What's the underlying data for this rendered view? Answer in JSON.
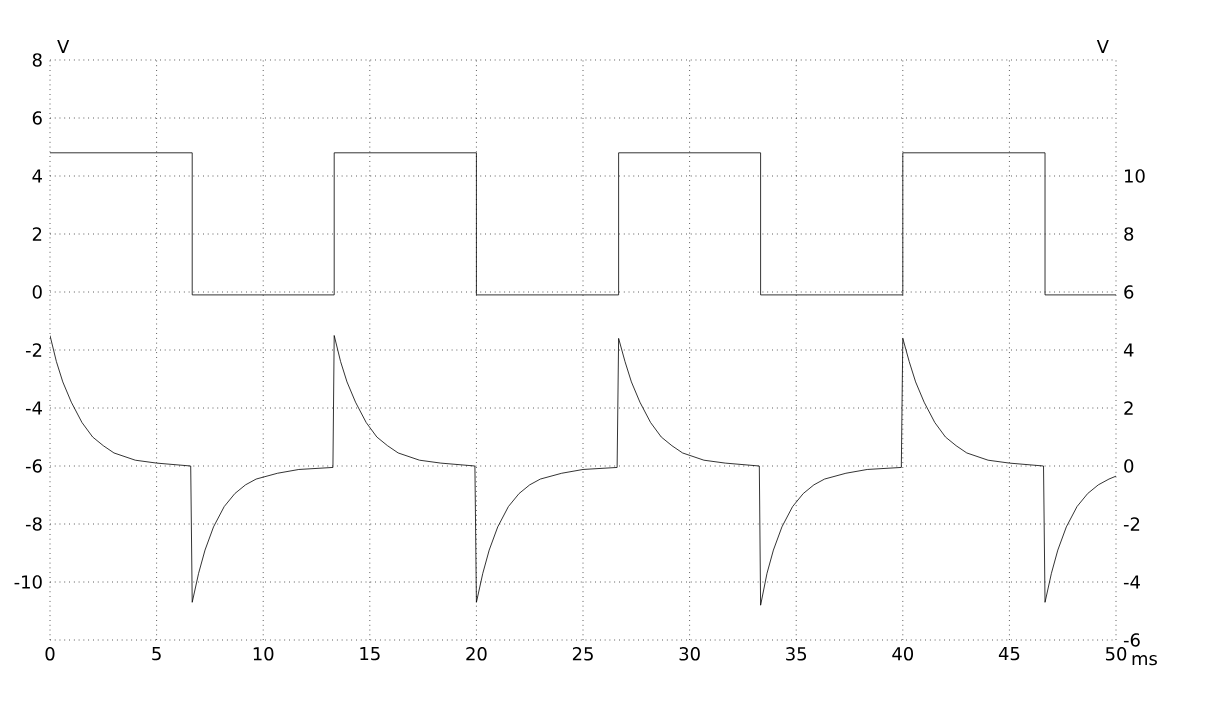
{
  "chart_data": {
    "type": "line",
    "xlabel": "ms",
    "ylabel": "V",
    "y2label": "V",
    "xlim": [
      0,
      50
    ],
    "xticks": [
      0,
      5,
      10,
      15,
      20,
      25,
      30,
      35,
      40,
      45,
      50
    ],
    "ylim": [
      -12,
      8
    ],
    "yticks": [
      {
        "value": -12,
        "label": null
      },
      -10,
      -8,
      -6,
      -4,
      -2,
      0,
      2,
      4,
      6,
      8
    ],
    "y2lim": [
      -6,
      14
    ],
    "y2ticks": [
      -6,
      -4,
      -2,
      0,
      2,
      4,
      6,
      8,
      10
    ],
    "grid": true,
    "marker": "none",
    "line_style": "solid",
    "series": [
      {
        "color": "#000000",
        "x": [
          0,
          6.67,
          6.67,
          13.33,
          13.33,
          20,
          20,
          26.67,
          26.67,
          33.33,
          33.33,
          40,
          40,
          46.67,
          46.67,
          50
        ],
        "values": [
          4.8,
          4.8,
          -0.1,
          -0.1,
          4.8,
          4.8,
          -0.1,
          -0.1,
          4.8,
          4.8,
          -0.1,
          -0.1,
          4.8,
          4.8,
          -0.1,
          -0.1
        ]
      },
      {
        "color": "#000000",
        "axis": "y2",
        "x": [
          0,
          0.3,
          0.6,
          1,
          1.5,
          2,
          2.5,
          3,
          4,
          5,
          6.6,
          6.67,
          6.97,
          7.27,
          7.67,
          8.17,
          8.67,
          9.17,
          9.67,
          10.67,
          11.67,
          13.27,
          13.33,
          13.63,
          13.93,
          14.33,
          14.83,
          15.33,
          15.83,
          16.33,
          17.33,
          18.33,
          19.93,
          20,
          20.3,
          20.6,
          21,
          21.5,
          22,
          22.5,
          23,
          24,
          25,
          26.6,
          26.67,
          26.97,
          27.27,
          27.67,
          28.17,
          28.67,
          29.17,
          29.67,
          30.67,
          31.67,
          33.27,
          33.33,
          33.63,
          33.93,
          34.33,
          34.83,
          35.33,
          35.83,
          36.33,
          37.33,
          38.33,
          39.93,
          40,
          40.3,
          40.6,
          41,
          41.5,
          42,
          42.5,
          43,
          44,
          45,
          46.6,
          46.67,
          46.97,
          47.27,
          47.67,
          48.17,
          48.67,
          49.17,
          49.67,
          50
        ],
        "values": [
          4.5,
          3.6,
          2.9,
          2.2,
          1.5,
          1.0,
          0.7,
          0.45,
          0.2,
          0.1,
          0.0,
          -4.7,
          -3.7,
          -2.9,
          -2.1,
          -1.4,
          -0.95,
          -0.65,
          -0.45,
          -0.25,
          -0.12,
          -0.05,
          4.5,
          3.6,
          2.9,
          2.2,
          1.5,
          1.0,
          0.7,
          0.45,
          0.2,
          0.1,
          0.0,
          -4.7,
          -3.7,
          -2.9,
          -2.1,
          -1.4,
          -0.95,
          -0.65,
          -0.45,
          -0.25,
          -0.12,
          -0.05,
          4.4,
          3.6,
          2.9,
          2.2,
          1.5,
          1.0,
          0.7,
          0.45,
          0.2,
          0.1,
          0.0,
          -4.8,
          -3.7,
          -2.9,
          -2.1,
          -1.4,
          -0.95,
          -0.65,
          -0.45,
          -0.25,
          -0.12,
          -0.05,
          4.4,
          3.6,
          2.9,
          2.2,
          1.5,
          1.0,
          0.7,
          0.45,
          0.2,
          0.1,
          0.0,
          -4.7,
          -3.7,
          -2.9,
          -2.1,
          -1.4,
          -0.95,
          -0.65,
          -0.45,
          -0.35
        ]
      }
    ]
  }
}
